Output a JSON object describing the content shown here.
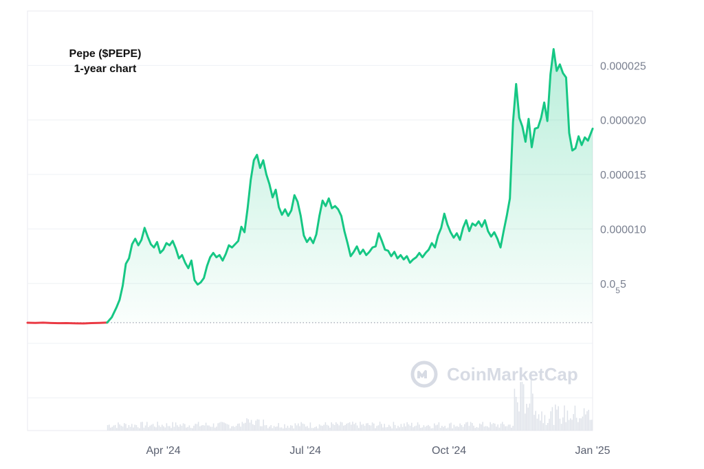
{
  "chart_data": {
    "type": "area",
    "title_lines": [
      "Pepe ($PEPE)",
      "1-year chart"
    ],
    "watermark": "CoinMarketCap",
    "baseline_price": 1.4e-06,
    "ylim": [
      -8.5e-06,
      3e-05
    ],
    "y_ticks": [
      {
        "value": 2.5e-05,
        "label": "0.000025"
      },
      {
        "value": 2e-05,
        "label": "0.000020"
      },
      {
        "value": 1.5e-05,
        "label": "0.000015"
      },
      {
        "value": 1e-05,
        "label": "0.000010"
      },
      {
        "value": 5e-06,
        "label": "0.0",
        "sub": "5",
        "suffix": "5"
      }
    ],
    "y_gridlines": [
      2.5e-05,
      2e-05,
      1.5e-05,
      1e-05,
      5e-06,
      -5e-07,
      -5.5e-06
    ],
    "x_ticks": [
      {
        "date": "2024-04-01",
        "label": "Apr '24"
      },
      {
        "date": "2024-07-01",
        "label": "Jul '24"
      },
      {
        "date": "2024-10-01",
        "label": "Oct '24"
      },
      {
        "date": "2025-01-01",
        "label": "Jan '25"
      }
    ],
    "xlim": [
      "2024-01-05",
      "2025-01-01"
    ],
    "colors": {
      "up": "#16c784",
      "down": "#ea3943",
      "fill_top": "#16c784",
      "grid": "#eef0f4",
      "baseline": "#9aa1ad",
      "axis_text": "#7a8090",
      "volume": "#dfe3ea"
    },
    "series": [
      {
        "name": "",
        "color": "#ea3943",
        "points": [
          [
            "2024-01-05",
            1.39e-06
          ],
          [
            "2024-01-10",
            1.38e-06
          ],
          [
            "2024-01-15",
            1.4e-06
          ],
          [
            "2024-01-20",
            1.37e-06
          ],
          [
            "2024-01-25",
            1.35e-06
          ],
          [
            "2024-01-30",
            1.36e-06
          ],
          [
            "2024-02-05",
            1.34e-06
          ],
          [
            "2024-02-10",
            1.33e-06
          ],
          [
            "2024-02-15",
            1.36e-06
          ],
          [
            "2024-02-20",
            1.38e-06
          ],
          [
            "2024-02-25",
            1.41e-06
          ]
        ]
      },
      {
        "name": "",
        "color": "#16c784",
        "points": [
          [
            "2024-02-25",
            1.41e-06
          ],
          [
            "2024-02-28",
            1.9e-06
          ],
          [
            "2024-03-02",
            2.8e-06
          ],
          [
            "2024-03-04",
            3.5e-06
          ],
          [
            "2024-03-06",
            4.8e-06
          ],
          [
            "2024-03-08",
            6.8e-06
          ],
          [
            "2024-03-10",
            7.3e-06
          ],
          [
            "2024-03-12",
            8.6e-06
          ],
          [
            "2024-03-14",
            9.1e-06
          ],
          [
            "2024-03-16",
            8.5e-06
          ],
          [
            "2024-03-18",
            9e-06
          ],
          [
            "2024-03-20",
            1.01e-05
          ],
          [
            "2024-03-22",
            9.3e-06
          ],
          [
            "2024-03-24",
            8.6e-06
          ],
          [
            "2024-03-26",
            8.3e-06
          ],
          [
            "2024-03-28",
            8.8e-06
          ],
          [
            "2024-03-30",
            7.8e-06
          ],
          [
            "2024-04-01",
            8.1e-06
          ],
          [
            "2024-04-03",
            8.7e-06
          ],
          [
            "2024-04-05",
            8.5e-06
          ],
          [
            "2024-04-07",
            8.9e-06
          ],
          [
            "2024-04-09",
            8.2e-06
          ],
          [
            "2024-04-11",
            7.3e-06
          ],
          [
            "2024-04-13",
            7.6e-06
          ],
          [
            "2024-04-15",
            6.9e-06
          ],
          [
            "2024-04-17",
            6.4e-06
          ],
          [
            "2024-04-19",
            7.1e-06
          ],
          [
            "2024-04-21",
            5.3e-06
          ],
          [
            "2024-04-23",
            4.9e-06
          ],
          [
            "2024-04-25",
            5.1e-06
          ],
          [
            "2024-04-27",
            5.5e-06
          ],
          [
            "2024-04-29",
            6.6e-06
          ],
          [
            "2024-05-01",
            7.4e-06
          ],
          [
            "2024-05-03",
            7.8e-06
          ],
          [
            "2024-05-05",
            7.4e-06
          ],
          [
            "2024-05-07",
            7.6e-06
          ],
          [
            "2024-05-09",
            7.1e-06
          ],
          [
            "2024-05-11",
            7.7e-06
          ],
          [
            "2024-05-13",
            8.5e-06
          ],
          [
            "2024-05-15",
            8.3e-06
          ],
          [
            "2024-05-17",
            8.6e-06
          ],
          [
            "2024-05-19",
            8.9e-06
          ],
          [
            "2024-05-21",
            1.02e-05
          ],
          [
            "2024-05-23",
            9.7e-06
          ],
          [
            "2024-05-25",
            1.19e-05
          ],
          [
            "2024-05-27",
            1.45e-05
          ],
          [
            "2024-05-29",
            1.63e-05
          ],
          [
            "2024-05-31",
            1.68e-05
          ],
          [
            "2024-06-02",
            1.56e-05
          ],
          [
            "2024-06-04",
            1.63e-05
          ],
          [
            "2024-06-06",
            1.5e-05
          ],
          [
            "2024-06-08",
            1.41e-05
          ],
          [
            "2024-06-10",
            1.29e-05
          ],
          [
            "2024-06-12",
            1.36e-05
          ],
          [
            "2024-06-14",
            1.2e-05
          ],
          [
            "2024-06-16",
            1.13e-05
          ],
          [
            "2024-06-18",
            1.18e-05
          ],
          [
            "2024-06-20",
            1.12e-05
          ],
          [
            "2024-06-22",
            1.17e-05
          ],
          [
            "2024-06-24",
            1.31e-05
          ],
          [
            "2024-06-26",
            1.25e-05
          ],
          [
            "2024-06-28",
            1.12e-05
          ],
          [
            "2024-06-30",
            9.4e-06
          ],
          [
            "2024-07-02",
            8.8e-06
          ],
          [
            "2024-07-04",
            9.2e-06
          ],
          [
            "2024-07-06",
            8.7e-06
          ],
          [
            "2024-07-08",
            9.5e-06
          ],
          [
            "2024-07-10",
            1.12e-05
          ],
          [
            "2024-07-12",
            1.26e-05
          ],
          [
            "2024-07-14",
            1.21e-05
          ],
          [
            "2024-07-16",
            1.28e-05
          ],
          [
            "2024-07-18",
            1.19e-05
          ],
          [
            "2024-07-20",
            1.21e-05
          ],
          [
            "2024-07-22",
            1.18e-05
          ],
          [
            "2024-07-24",
            1.12e-05
          ],
          [
            "2024-07-26",
            9.8e-06
          ],
          [
            "2024-07-28",
            8.7e-06
          ],
          [
            "2024-07-30",
            7.5e-06
          ],
          [
            "2024-08-01",
            7.9e-06
          ],
          [
            "2024-08-03",
            8.4e-06
          ],
          [
            "2024-08-05",
            7.7e-06
          ],
          [
            "2024-08-07",
            8.1e-06
          ],
          [
            "2024-08-09",
            7.6e-06
          ],
          [
            "2024-08-11",
            7.9e-06
          ],
          [
            "2024-08-13",
            8.3e-06
          ],
          [
            "2024-08-15",
            8.4e-06
          ],
          [
            "2024-08-17",
            9.6e-06
          ],
          [
            "2024-08-19",
            8.9e-06
          ],
          [
            "2024-08-21",
            8.1e-06
          ],
          [
            "2024-08-23",
            8e-06
          ],
          [
            "2024-08-25",
            7.5e-06
          ],
          [
            "2024-08-27",
            7.9e-06
          ],
          [
            "2024-08-29",
            7.3e-06
          ],
          [
            "2024-08-31",
            7.6e-06
          ],
          [
            "2024-09-02",
            7.2e-06
          ],
          [
            "2024-09-04",
            7.5e-06
          ],
          [
            "2024-09-06",
            6.9e-06
          ],
          [
            "2024-09-08",
            7.2e-06
          ],
          [
            "2024-09-10",
            7.4e-06
          ],
          [
            "2024-09-12",
            7.8e-06
          ],
          [
            "2024-09-14",
            7.4e-06
          ],
          [
            "2024-09-16",
            7.8e-06
          ],
          [
            "2024-09-18",
            8.1e-06
          ],
          [
            "2024-09-20",
            8.7e-06
          ],
          [
            "2024-09-22",
            8.3e-06
          ],
          [
            "2024-09-24",
            9.4e-06
          ],
          [
            "2024-09-26",
            1.01e-05
          ],
          [
            "2024-09-28",
            1.14e-05
          ],
          [
            "2024-09-30",
            1.04e-05
          ],
          [
            "2024-10-02",
            9.7e-06
          ],
          [
            "2024-10-04",
            9.2e-06
          ],
          [
            "2024-10-06",
            9.6e-06
          ],
          [
            "2024-10-08",
            9e-06
          ],
          [
            "2024-10-10",
            1.01e-05
          ],
          [
            "2024-10-12",
            1.08e-05
          ],
          [
            "2024-10-14",
            9.8e-06
          ],
          [
            "2024-10-16",
            1.05e-05
          ],
          [
            "2024-10-18",
            1.03e-05
          ],
          [
            "2024-10-20",
            1.07e-05
          ],
          [
            "2024-10-22",
            1.02e-05
          ],
          [
            "2024-10-24",
            1.08e-05
          ],
          [
            "2024-10-26",
            9.8e-06
          ],
          [
            "2024-10-28",
            9.3e-06
          ],
          [
            "2024-10-30",
            9.7e-06
          ],
          [
            "2024-11-01",
            9.1e-06
          ],
          [
            "2024-11-03",
            8.3e-06
          ],
          [
            "2024-11-05",
            9.8e-06
          ],
          [
            "2024-11-07",
            1.12e-05
          ],
          [
            "2024-11-09",
            1.28e-05
          ],
          [
            "2024-11-11",
            1.98e-05
          ],
          [
            "2024-11-13",
            2.33e-05
          ],
          [
            "2024-11-15",
            2.02e-05
          ],
          [
            "2024-11-17",
            1.94e-05
          ],
          [
            "2024-11-19",
            1.8e-05
          ],
          [
            "2024-11-21",
            2.01e-05
          ],
          [
            "2024-11-23",
            1.75e-05
          ],
          [
            "2024-11-25",
            1.92e-05
          ],
          [
            "2024-11-27",
            1.93e-05
          ],
          [
            "2024-11-29",
            2.02e-05
          ],
          [
            "2024-12-01",
            2.16e-05
          ],
          [
            "2024-12-03",
            1.99e-05
          ],
          [
            "2024-12-05",
            2.42e-05
          ],
          [
            "2024-12-07",
            2.65e-05
          ],
          [
            "2024-12-09",
            2.45e-05
          ],
          [
            "2024-12-11",
            2.51e-05
          ],
          [
            "2024-12-13",
            2.43e-05
          ],
          [
            "2024-12-15",
            2.39e-05
          ],
          [
            "2024-12-17",
            1.88e-05
          ],
          [
            "2024-12-19",
            1.72e-05
          ],
          [
            "2024-12-21",
            1.74e-05
          ],
          [
            "2024-12-23",
            1.85e-05
          ],
          [
            "2024-12-25",
            1.77e-05
          ],
          [
            "2024-12-27",
            1.84e-05
          ],
          [
            "2024-12-29",
            1.81e-05
          ],
          [
            "2025-01-01",
            1.92e-05
          ]
        ]
      }
    ]
  }
}
